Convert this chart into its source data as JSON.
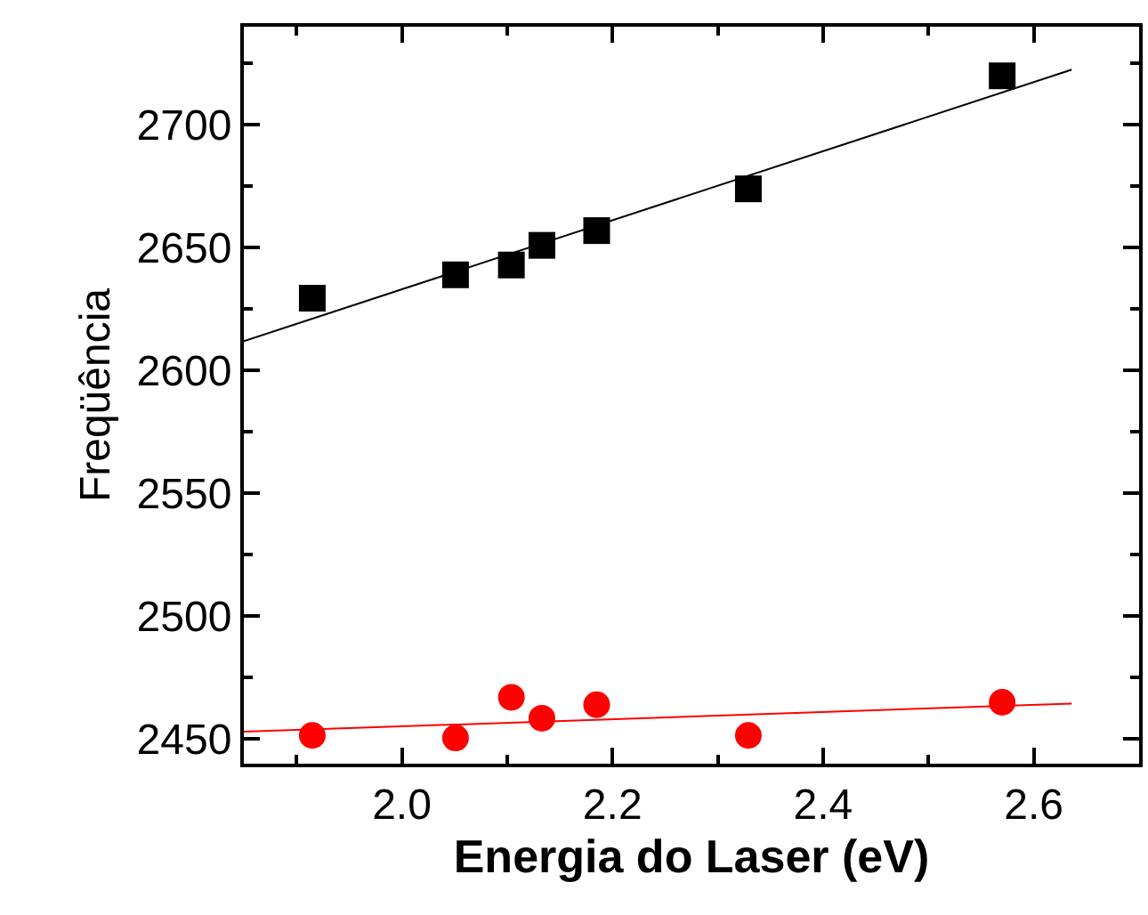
{
  "chart_data": {
    "type": "scatter",
    "xlabel": "Energia do Laser (eV)",
    "ylabel": "Freqüência",
    "xlim": [
      1.85,
      2.7
    ],
    "ylim": [
      2440,
      2740
    ],
    "xticks": [
      {
        "value": 1.9,
        "label": null
      },
      {
        "value": 2.0,
        "label": "2.0"
      },
      {
        "value": 2.1,
        "label": null
      },
      2.2,
      {
        "value": 2.3,
        "label": null
      },
      2.4,
      {
        "value": 2.5,
        "label": null
      },
      2.6
    ],
    "yticks": [
      2450,
      {
        "value": 2475,
        "label": null
      },
      2500,
      {
        "value": 2525,
        "label": null
      },
      2550,
      {
        "value": 2575,
        "label": null
      },
      2600,
      {
        "value": 2625,
        "label": null
      },
      2650,
      {
        "value": 2675,
        "label": null
      },
      2700,
      {
        "value": 2725,
        "label": null
      }
    ],
    "series": [
      {
        "marker": "square",
        "color": "#000000",
        "x": [
          1.915,
          2.051,
          2.104,
          2.133,
          2.185,
          2.329,
          2.57
        ],
        "values": [
          2629.5,
          2639,
          2643,
          2651,
          2657,
          2674,
          2720
        ]
      },
      {
        "marker": "circle",
        "color": "#ff0000",
        "x": [
          1.915,
          2.051,
          2.104,
          2.133,
          2.185,
          2.329,
          2.57
        ],
        "values": [
          2451.5,
          2450.5,
          2467,
          2458.5,
          2464,
          2451.5,
          2465
        ]
      },
      {
        "type": "line",
        "color": "#000000",
        "x": [
          1.85,
          2.636
        ],
        "values": [
          2612,
          2722.5
        ]
      },
      {
        "type": "line",
        "color": "#ff0000",
        "x": [
          1.85,
          2.636
        ],
        "values": [
          2453,
          2464.5
        ]
      }
    ]
  }
}
